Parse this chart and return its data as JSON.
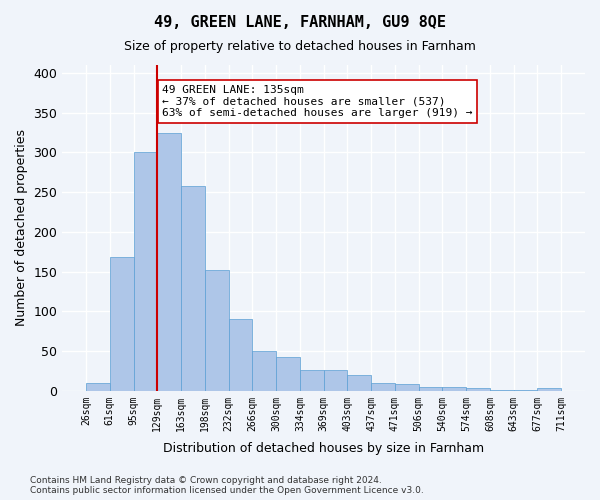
{
  "title": "49, GREEN LANE, FARNHAM, GU9 8QE",
  "subtitle": "Size of property relative to detached houses in Farnham",
  "xlabel": "Distribution of detached houses by size in Farnham",
  "ylabel": "Number of detached properties",
  "bar_labels": [
    "26sqm",
    "61sqm",
    "95sqm",
    "129sqm",
    "163sqm",
    "198sqm",
    "232sqm",
    "266sqm",
    "300sqm",
    "334sqm",
    "369sqm",
    "403sqm",
    "437sqm",
    "471sqm",
    "506sqm",
    "540sqm",
    "574sqm",
    "608sqm",
    "643sqm",
    "677sqm",
    "711sqm"
  ],
  "bar_values": [
    10,
    168,
    300,
    325,
    258,
    152,
    90,
    50,
    43,
    26,
    26,
    20,
    10,
    9,
    5,
    5,
    4,
    1,
    1,
    3
  ],
  "bar_color": "#aec6e8",
  "bar_edge_color": "#5a9fd4",
  "background_color": "#f0f4fa",
  "grid_color": "#ffffff",
  "vline_x": 3,
  "vline_color": "#cc0000",
  "annotation_text": "49 GREEN LANE: 135sqm\n← 37% of detached houses are smaller (537)\n63% of semi-detached houses are larger (919) →",
  "annotation_box_color": "#ffffff",
  "annotation_box_edge": "#cc0000",
  "ylim": [
    0,
    410
  ],
  "yticks": [
    0,
    50,
    100,
    150,
    200,
    250,
    300,
    350,
    400
  ],
  "footer": "Contains HM Land Registry data © Crown copyright and database right 2024.\nContains public sector information licensed under the Open Government Licence v3.0."
}
